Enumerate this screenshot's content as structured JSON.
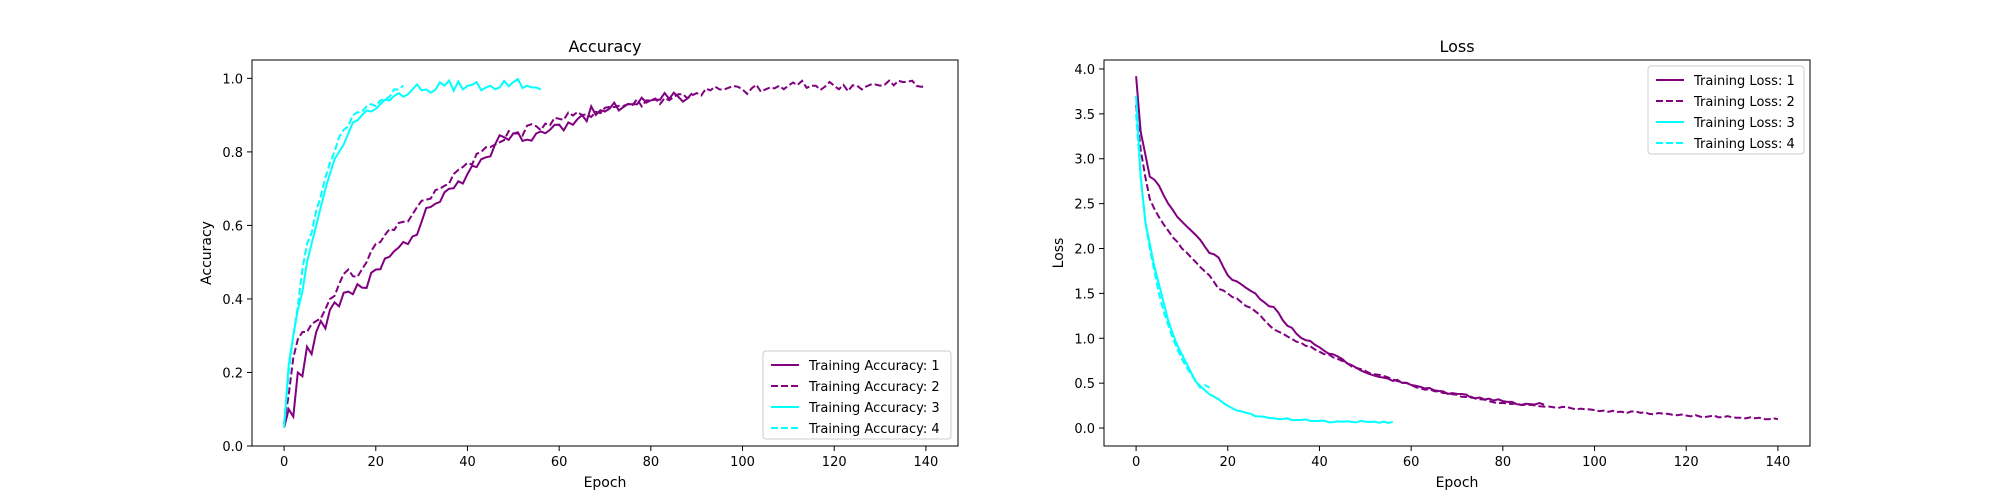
{
  "chart_data": [
    {
      "type": "line",
      "title": "Accuracy",
      "xlabel": "Epoch",
      "ylabel": "Accuracy",
      "xlim": [
        -7,
        147
      ],
      "ylim": [
        0,
        1.05
      ],
      "xticks": [
        0,
        20,
        40,
        60,
        80,
        100,
        120,
        140
      ],
      "yticks": [
        0.0,
        0.2,
        0.4,
        0.6,
        0.8,
        1.0
      ],
      "ytick_labels": [
        "0.0",
        "0.2",
        "0.4",
        "0.6",
        "0.8",
        "1.0"
      ],
      "grid": false,
      "legend_position": "lower-right",
      "series": [
        {
          "name": "Training Accuracy: 1",
          "color": "#800080",
          "dash": "solid",
          "anchors": [
            [
              0,
              0.05
            ],
            [
              1,
              0.1
            ],
            [
              2,
              0.08
            ],
            [
              3,
              0.2
            ],
            [
              4,
              0.19
            ],
            [
              5,
              0.27
            ],
            [
              6,
              0.25
            ],
            [
              7,
              0.31
            ],
            [
              8,
              0.34
            ],
            [
              9,
              0.32
            ],
            [
              10,
              0.37
            ],
            [
              12,
              0.38
            ],
            [
              14,
              0.42
            ],
            [
              16,
              0.44
            ],
            [
              18,
              0.43
            ],
            [
              20,
              0.48
            ],
            [
              22,
              0.51
            ],
            [
              25,
              0.54
            ],
            [
              28,
              0.57
            ],
            [
              30,
              0.61
            ],
            [
              32,
              0.65
            ],
            [
              35,
              0.69
            ],
            [
              38,
              0.72
            ],
            [
              40,
              0.74
            ],
            [
              43,
              0.78
            ],
            [
              46,
              0.82
            ],
            [
              48,
              0.84
            ],
            [
              50,
              0.85
            ],
            [
              52,
              0.83
            ],
            [
              55,
              0.85
            ],
            [
              58,
              0.86
            ],
            [
              62,
              0.88
            ],
            [
              65,
              0.9
            ],
            [
              70,
              0.91
            ],
            [
              75,
              0.93
            ],
            [
              80,
              0.94
            ],
            [
              83,
              0.96
            ],
            [
              86,
              0.95
            ],
            [
              89,
              0.96
            ]
          ],
          "noise": 0.02
        },
        {
          "name": "Training Accuracy: 2",
          "color": "#800080",
          "dash": "dashed",
          "anchors": [
            [
              0,
              0.06
            ],
            [
              2,
              0.24
            ],
            [
              3,
              0.29
            ],
            [
              5,
              0.31
            ],
            [
              7,
              0.34
            ],
            [
              10,
              0.4
            ],
            [
              12,
              0.44
            ],
            [
              14,
              0.48
            ],
            [
              16,
              0.46
            ],
            [
              18,
              0.5
            ],
            [
              20,
              0.55
            ],
            [
              23,
              0.59
            ],
            [
              26,
              0.61
            ],
            [
              28,
              0.63
            ],
            [
              31,
              0.67
            ],
            [
              34,
              0.7
            ],
            [
              37,
              0.74
            ],
            [
              40,
              0.77
            ],
            [
              43,
              0.8
            ],
            [
              46,
              0.82
            ],
            [
              50,
              0.85
            ],
            [
              55,
              0.87
            ],
            [
              60,
              0.89
            ],
            [
              65,
              0.9
            ],
            [
              70,
              0.92
            ],
            [
              75,
              0.93
            ],
            [
              80,
              0.94
            ],
            [
              85,
              0.95
            ],
            [
              90,
              0.96
            ],
            [
              95,
              0.97
            ],
            [
              100,
              0.97
            ],
            [
              105,
              0.97
            ],
            [
              110,
              0.98
            ],
            [
              115,
              0.98
            ],
            [
              120,
              0.98
            ],
            [
              125,
              0.98
            ],
            [
              130,
              0.98
            ],
            [
              135,
              0.99
            ],
            [
              140,
              0.98
            ]
          ],
          "noise": 0.015
        },
        {
          "name": "Training Accuracy: 3",
          "color": "#00ffff",
          "dash": "solid",
          "anchors": [
            [
              0,
              0.05
            ],
            [
              1,
              0.22
            ],
            [
              2,
              0.3
            ],
            [
              3,
              0.37
            ],
            [
              4,
              0.42
            ],
            [
              5,
              0.5
            ],
            [
              6,
              0.55
            ],
            [
              7,
              0.6
            ],
            [
              8,
              0.65
            ],
            [
              9,
              0.7
            ],
            [
              10,
              0.74
            ],
            [
              11,
              0.78
            ],
            [
              12,
              0.8
            ],
            [
              13,
              0.82
            ],
            [
              14,
              0.85
            ],
            [
              15,
              0.88
            ],
            [
              17,
              0.9
            ],
            [
              19,
              0.91
            ],
            [
              21,
              0.93
            ],
            [
              23,
              0.94
            ],
            [
              25,
              0.96
            ],
            [
              28,
              0.97
            ],
            [
              31,
              0.97
            ],
            [
              35,
              0.98
            ],
            [
              40,
              0.98
            ],
            [
              45,
              0.98
            ],
            [
              50,
              0.99
            ],
            [
              53,
              0.98
            ],
            [
              56,
              0.97
            ]
          ],
          "noise": 0.015
        },
        {
          "name": "Training Accuracy: 4",
          "color": "#00ffff",
          "dash": "dashed",
          "anchors": [
            [
              0,
              0.06
            ],
            [
              1,
              0.2
            ],
            [
              2,
              0.3
            ],
            [
              3,
              0.38
            ],
            [
              4,
              0.48
            ],
            [
              5,
              0.55
            ],
            [
              6,
              0.58
            ],
            [
              7,
              0.64
            ],
            [
              8,
              0.68
            ],
            [
              9,
              0.73
            ],
            [
              10,
              0.77
            ],
            [
              11,
              0.8
            ],
            [
              12,
              0.84
            ],
            [
              13,
              0.86
            ],
            [
              14,
              0.87
            ],
            [
              15,
              0.9
            ],
            [
              17,
              0.91
            ],
            [
              19,
              0.93
            ],
            [
              21,
              0.94
            ],
            [
              23,
              0.95
            ],
            [
              25,
              0.97
            ],
            [
              26,
              0.98
            ]
          ],
          "noise": 0.012
        }
      ]
    },
    {
      "type": "line",
      "title": "Loss",
      "xlabel": "Epoch",
      "ylabel": "Loss",
      "xlim": [
        -7,
        147
      ],
      "ylim": [
        -0.2,
        4.1
      ],
      "xticks": [
        0,
        20,
        40,
        60,
        80,
        100,
        120,
        140
      ],
      "yticks": [
        0.0,
        0.5,
        1.0,
        1.5,
        2.0,
        2.5,
        3.0,
        3.5,
        4.0
      ],
      "ytick_labels": [
        "0.0",
        "0.5",
        "1.0",
        "1.5",
        "2.0",
        "2.5",
        "3.0",
        "3.5",
        "4.0"
      ],
      "grid": false,
      "legend_position": "upper-right",
      "series": [
        {
          "name": "Training Loss: 1",
          "color": "#800080",
          "dash": "solid",
          "anchors": [
            [
              0,
              3.92
            ],
            [
              1,
              3.3
            ],
            [
              2,
              3.05
            ],
            [
              3,
              2.8
            ],
            [
              5,
              2.7
            ],
            [
              7,
              2.5
            ],
            [
              10,
              2.3
            ],
            [
              13,
              2.15
            ],
            [
              16,
              1.95
            ],
            [
              18,
              1.9
            ],
            [
              20,
              1.7
            ],
            [
              23,
              1.6
            ],
            [
              26,
              1.5
            ],
            [
              28,
              1.4
            ],
            [
              30,
              1.35
            ],
            [
              32,
              1.2
            ],
            [
              35,
              1.05
            ],
            [
              38,
              0.97
            ],
            [
              40,
              0.9
            ],
            [
              43,
              0.82
            ],
            [
              46,
              0.72
            ],
            [
              50,
              0.62
            ],
            [
              55,
              0.55
            ],
            [
              60,
              0.48
            ],
            [
              65,
              0.42
            ],
            [
              70,
              0.38
            ],
            [
              75,
              0.34
            ],
            [
              80,
              0.3
            ],
            [
              85,
              0.27
            ],
            [
              89,
              0.26
            ]
          ],
          "noise": 0.02
        },
        {
          "name": "Training Loss: 2",
          "color": "#800080",
          "dash": "dashed",
          "anchors": [
            [
              0,
              3.6
            ],
            [
              1,
              3.1
            ],
            [
              2,
              2.8
            ],
            [
              3,
              2.55
            ],
            [
              5,
              2.35
            ],
            [
              7,
              2.2
            ],
            [
              10,
              2.0
            ],
            [
              13,
              1.85
            ],
            [
              16,
              1.7
            ],
            [
              18,
              1.55
            ],
            [
              20,
              1.5
            ],
            [
              23,
              1.4
            ],
            [
              26,
              1.3
            ],
            [
              28,
              1.2
            ],
            [
              30,
              1.1
            ],
            [
              33,
              1.02
            ],
            [
              36,
              0.95
            ],
            [
              40,
              0.85
            ],
            [
              44,
              0.77
            ],
            [
              48,
              0.67
            ],
            [
              52,
              0.6
            ],
            [
              56,
              0.54
            ],
            [
              60,
              0.48
            ],
            [
              65,
              0.41
            ],
            [
              70,
              0.37
            ],
            [
              75,
              0.32
            ],
            [
              80,
              0.28
            ],
            [
              85,
              0.26
            ],
            [
              90,
              0.24
            ],
            [
              95,
              0.22
            ],
            [
              100,
              0.2
            ],
            [
              105,
              0.18
            ],
            [
              110,
              0.17
            ],
            [
              115,
              0.16
            ],
            [
              120,
              0.14
            ],
            [
              125,
              0.13
            ],
            [
              130,
              0.12
            ],
            [
              135,
              0.11
            ],
            [
              140,
              0.1
            ]
          ],
          "noise": 0.012
        },
        {
          "name": "Training Loss: 3",
          "color": "#00ffff",
          "dash": "solid",
          "anchors": [
            [
              0,
              3.7
            ],
            [
              1,
              2.8
            ],
            [
              2,
              2.3
            ],
            [
              3,
              2.05
            ],
            [
              4,
              1.8
            ],
            [
              5,
              1.6
            ],
            [
              6,
              1.4
            ],
            [
              7,
              1.2
            ],
            [
              8,
              1.05
            ],
            [
              9,
              0.92
            ],
            [
              10,
              0.82
            ],
            [
              11,
              0.72
            ],
            [
              12,
              0.62
            ],
            [
              13,
              0.52
            ],
            [
              15,
              0.42
            ],
            [
              17,
              0.35
            ],
            [
              19,
              0.28
            ],
            [
              21,
              0.22
            ],
            [
              24,
              0.17
            ],
            [
              27,
              0.13
            ],
            [
              30,
              0.11
            ],
            [
              35,
              0.09
            ],
            [
              40,
              0.08
            ],
            [
              45,
              0.07
            ],
            [
              50,
              0.07
            ],
            [
              53,
              0.06
            ],
            [
              56,
              0.07
            ]
          ],
          "noise": 0.012
        },
        {
          "name": "Training Loss: 4",
          "color": "#00ffff",
          "dash": "dashed",
          "anchors": [
            [
              0,
              3.5
            ],
            [
              1,
              2.8
            ],
            [
              2,
              2.3
            ],
            [
              3,
              2.0
            ],
            [
              4,
              1.75
            ],
            [
              5,
              1.5
            ],
            [
              6,
              1.3
            ],
            [
              7,
              1.15
            ],
            [
              8,
              1.0
            ],
            [
              9,
              0.88
            ],
            [
              10,
              0.77
            ],
            [
              11,
              0.68
            ],
            [
              12,
              0.6
            ],
            [
              13,
              0.52
            ],
            [
              14,
              0.45
            ],
            [
              15,
              0.48
            ],
            [
              16,
              0.45
            ]
          ],
          "noise": 0.012
        }
      ]
    }
  ]
}
